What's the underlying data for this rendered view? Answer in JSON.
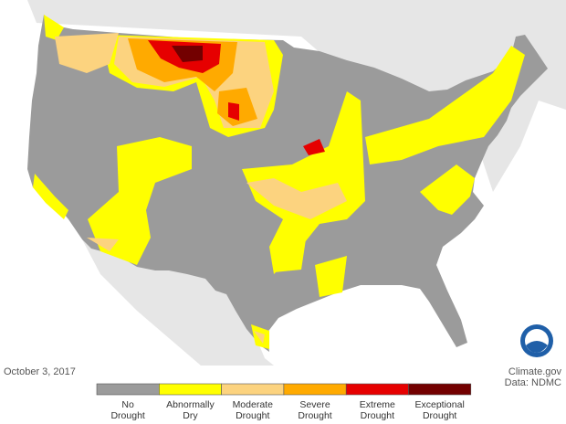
{
  "date": "October 3, 2017",
  "credit": "Climate.gov",
  "source": "Data: NDMC",
  "legend": [
    {
      "label": [
        "No",
        "Drought"
      ],
      "color": "#9b9b9b"
    },
    {
      "label": [
        "Abnormally",
        "Dry"
      ],
      "color": "#ffff00"
    },
    {
      "label": [
        "Moderate",
        "Drought"
      ],
      "color": "#fcd37f"
    },
    {
      "label": [
        "Severe",
        "Drought"
      ],
      "color": "#ffaa00"
    },
    {
      "label": [
        "Extreme",
        "Drought"
      ],
      "color": "#e60000"
    },
    {
      "label": [
        "Exceptional",
        "Drought"
      ],
      "color": "#730000"
    }
  ]
}
